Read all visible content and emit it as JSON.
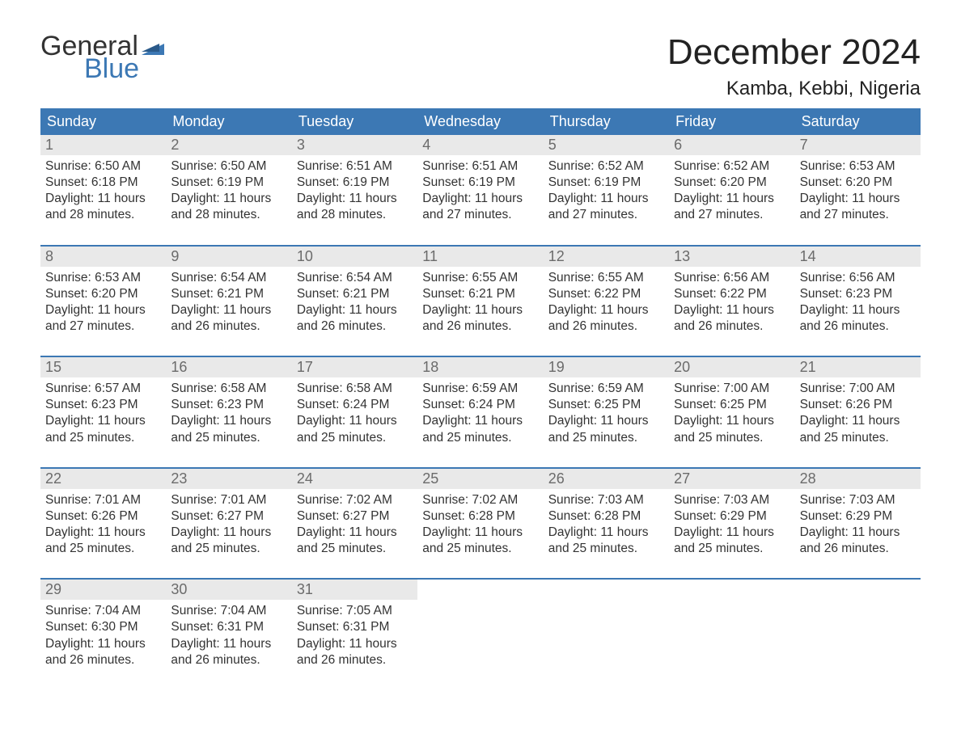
{
  "brand": {
    "word1": "General",
    "word2": "Blue",
    "text_color": "#333333",
    "accent_color": "#3c78b4"
  },
  "title": "December 2024",
  "location": "Kamba, Kebbi, Nigeria",
  "colors": {
    "header_bg": "#3c78b4",
    "header_text": "#ffffff",
    "daynum_bg": "#e9e9e9",
    "daynum_text": "#6b6b6b",
    "week_border": "#3c78b4",
    "body_text": "#333333",
    "page_bg": "#ffffff"
  },
  "typography": {
    "title_fontsize": 44,
    "location_fontsize": 24,
    "dow_fontsize": 18,
    "daynum_fontsize": 18,
    "body_fontsize": 15.5,
    "font_family": "Arial"
  },
  "days_of_week": [
    "Sunday",
    "Monday",
    "Tuesday",
    "Wednesday",
    "Thursday",
    "Friday",
    "Saturday"
  ],
  "weeks": [
    [
      {
        "n": 1,
        "sunrise": "6:50 AM",
        "sunset": "6:18 PM",
        "daylight": "11 hours and 28 minutes."
      },
      {
        "n": 2,
        "sunrise": "6:50 AM",
        "sunset": "6:19 PM",
        "daylight": "11 hours and 28 minutes."
      },
      {
        "n": 3,
        "sunrise": "6:51 AM",
        "sunset": "6:19 PM",
        "daylight": "11 hours and 28 minutes."
      },
      {
        "n": 4,
        "sunrise": "6:51 AM",
        "sunset": "6:19 PM",
        "daylight": "11 hours and 27 minutes."
      },
      {
        "n": 5,
        "sunrise": "6:52 AM",
        "sunset": "6:19 PM",
        "daylight": "11 hours and 27 minutes."
      },
      {
        "n": 6,
        "sunrise": "6:52 AM",
        "sunset": "6:20 PM",
        "daylight": "11 hours and 27 minutes."
      },
      {
        "n": 7,
        "sunrise": "6:53 AM",
        "sunset": "6:20 PM",
        "daylight": "11 hours and 27 minutes."
      }
    ],
    [
      {
        "n": 8,
        "sunrise": "6:53 AM",
        "sunset": "6:20 PM",
        "daylight": "11 hours and 27 minutes."
      },
      {
        "n": 9,
        "sunrise": "6:54 AM",
        "sunset": "6:21 PM",
        "daylight": "11 hours and 26 minutes."
      },
      {
        "n": 10,
        "sunrise": "6:54 AM",
        "sunset": "6:21 PM",
        "daylight": "11 hours and 26 minutes."
      },
      {
        "n": 11,
        "sunrise": "6:55 AM",
        "sunset": "6:21 PM",
        "daylight": "11 hours and 26 minutes."
      },
      {
        "n": 12,
        "sunrise": "6:55 AM",
        "sunset": "6:22 PM",
        "daylight": "11 hours and 26 minutes."
      },
      {
        "n": 13,
        "sunrise": "6:56 AM",
        "sunset": "6:22 PM",
        "daylight": "11 hours and 26 minutes."
      },
      {
        "n": 14,
        "sunrise": "6:56 AM",
        "sunset": "6:23 PM",
        "daylight": "11 hours and 26 minutes."
      }
    ],
    [
      {
        "n": 15,
        "sunrise": "6:57 AM",
        "sunset": "6:23 PM",
        "daylight": "11 hours and 25 minutes."
      },
      {
        "n": 16,
        "sunrise": "6:58 AM",
        "sunset": "6:23 PM",
        "daylight": "11 hours and 25 minutes."
      },
      {
        "n": 17,
        "sunrise": "6:58 AM",
        "sunset": "6:24 PM",
        "daylight": "11 hours and 25 minutes."
      },
      {
        "n": 18,
        "sunrise": "6:59 AM",
        "sunset": "6:24 PM",
        "daylight": "11 hours and 25 minutes."
      },
      {
        "n": 19,
        "sunrise": "6:59 AM",
        "sunset": "6:25 PM",
        "daylight": "11 hours and 25 minutes."
      },
      {
        "n": 20,
        "sunrise": "7:00 AM",
        "sunset": "6:25 PM",
        "daylight": "11 hours and 25 minutes."
      },
      {
        "n": 21,
        "sunrise": "7:00 AM",
        "sunset": "6:26 PM",
        "daylight": "11 hours and 25 minutes."
      }
    ],
    [
      {
        "n": 22,
        "sunrise": "7:01 AM",
        "sunset": "6:26 PM",
        "daylight": "11 hours and 25 minutes."
      },
      {
        "n": 23,
        "sunrise": "7:01 AM",
        "sunset": "6:27 PM",
        "daylight": "11 hours and 25 minutes."
      },
      {
        "n": 24,
        "sunrise": "7:02 AM",
        "sunset": "6:27 PM",
        "daylight": "11 hours and 25 minutes."
      },
      {
        "n": 25,
        "sunrise": "7:02 AM",
        "sunset": "6:28 PM",
        "daylight": "11 hours and 25 minutes."
      },
      {
        "n": 26,
        "sunrise": "7:03 AM",
        "sunset": "6:28 PM",
        "daylight": "11 hours and 25 minutes."
      },
      {
        "n": 27,
        "sunrise": "7:03 AM",
        "sunset": "6:29 PM",
        "daylight": "11 hours and 25 minutes."
      },
      {
        "n": 28,
        "sunrise": "7:03 AM",
        "sunset": "6:29 PM",
        "daylight": "11 hours and 26 minutes."
      }
    ],
    [
      {
        "n": 29,
        "sunrise": "7:04 AM",
        "sunset": "6:30 PM",
        "daylight": "11 hours and 26 minutes."
      },
      {
        "n": 30,
        "sunrise": "7:04 AM",
        "sunset": "6:31 PM",
        "daylight": "11 hours and 26 minutes."
      },
      {
        "n": 31,
        "sunrise": "7:05 AM",
        "sunset": "6:31 PM",
        "daylight": "11 hours and 26 minutes."
      },
      null,
      null,
      null,
      null
    ]
  ],
  "labels": {
    "sunrise_prefix": "Sunrise: ",
    "sunset_prefix": "Sunset: ",
    "daylight_prefix": "Daylight: "
  }
}
